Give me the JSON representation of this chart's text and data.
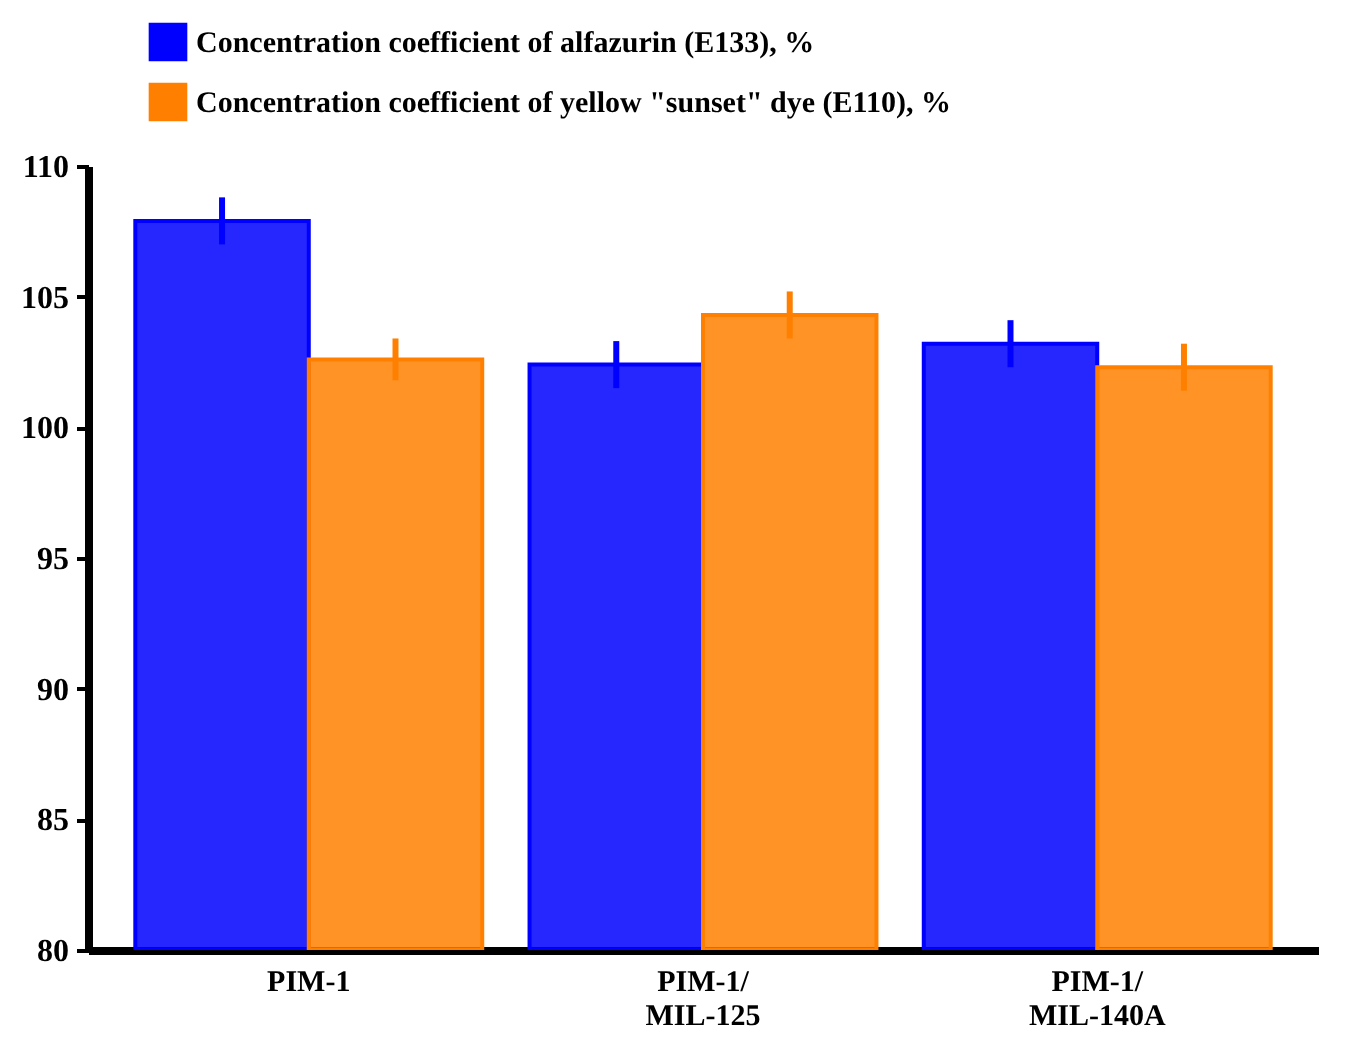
{
  "chart_data": {
    "type": "bar",
    "categories": [
      "PIM-1",
      "PIM-1/MIL-125",
      "PIM-1/MIL-140A"
    ],
    "series": [
      {
        "name": "Concentration coefficient of alfazurin (E133), %",
        "color": "#0000ff",
        "values": [
          107.9,
          102.4,
          103.2
        ],
        "errors": [
          0.9,
          0.9,
          0.9
        ]
      },
      {
        "name": "Concentration coefficient of yellow \"sunset\" dye (E110), %",
        "color": "#ff8000",
        "values": [
          102.6,
          104.3,
          102.3
        ],
        "errors": [
          0.8,
          0.9,
          0.9
        ]
      }
    ],
    "ylim": [
      80,
      110
    ],
    "yticks": [
      80,
      85,
      90,
      95,
      100,
      105,
      110
    ],
    "grid": false,
    "legend": "top"
  }
}
